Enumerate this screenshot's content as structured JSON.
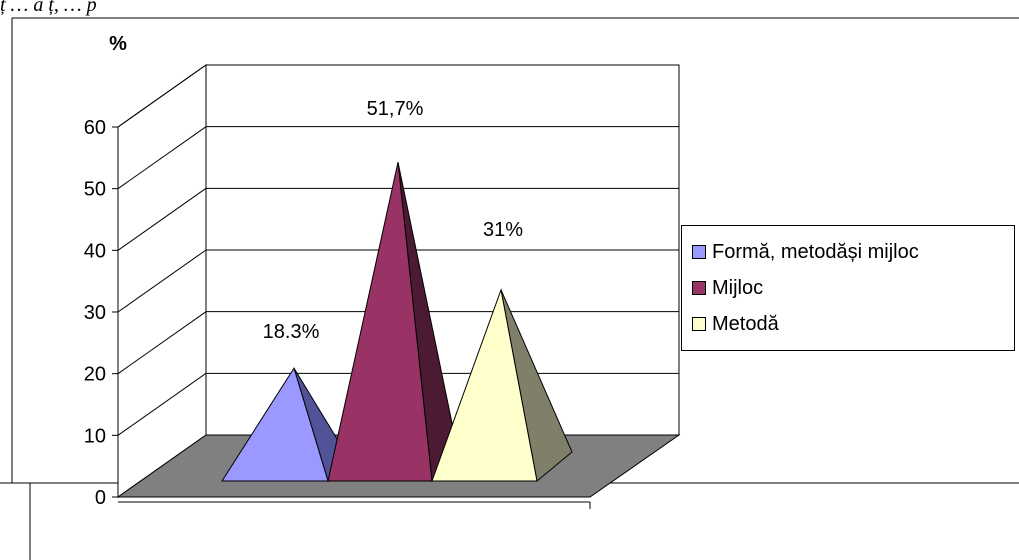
{
  "header": {
    "caption": "ț …  ă  ț, … p"
  },
  "chart_data": {
    "type": "bar",
    "style": "3d-pyramid",
    "ylabel": "%",
    "ylim": [
      0,
      60
    ],
    "yticks": [
      "0",
      "10",
      "20",
      "30",
      "40",
      "50",
      "60"
    ],
    "grid": true,
    "legend_position": "right",
    "series": [
      {
        "name": "Formă, metodăși mijloc",
        "value": 18.3,
        "label": "18.3%",
        "color": "#9999ff",
        "shade": "#525299"
      },
      {
        "name": "Mijloc",
        "value": 51.7,
        "label": "51,7%",
        "color": "#993366",
        "shade": "#4d1a33"
      },
      {
        "name": "Metodă",
        "value": 31,
        "label": "31%",
        "color": "#ffffcc",
        "shade": "#80806a"
      }
    ]
  }
}
